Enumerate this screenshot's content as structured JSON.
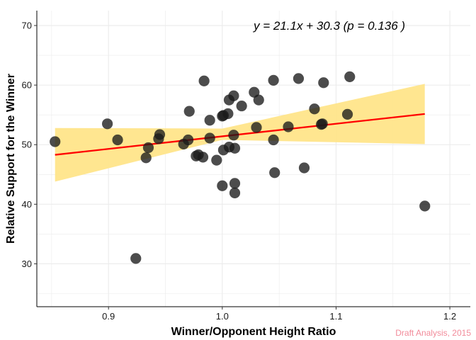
{
  "chart_data": {
    "type": "scatter",
    "xlabel": "Winner/Opponent Height Ratio",
    "ylabel": "Relative Support for the Winner",
    "xlim": [
      0.837,
      1.218
    ],
    "ylim": [
      22.8,
      72.5
    ],
    "x_ticks": [
      0.9,
      1.0,
      1.1,
      1.2
    ],
    "x_tick_labels": [
      "0.9",
      "1.0",
      "1.1",
      "1.2"
    ],
    "y_ticks": [
      30,
      40,
      50,
      60,
      70
    ],
    "y_tick_labels": [
      "30",
      "40",
      "50",
      "60",
      "70"
    ],
    "grid": true,
    "equation": "y = 21.1x + 30.3 (p = 0.136 )",
    "caption": "Draft Analysis, 2015",
    "colors": {
      "points": "#1a1a1a",
      "fit_line": "#ff0000",
      "confidence_band": "#ffe58a",
      "grid": "#ebebeb",
      "caption": "#f28b9a"
    },
    "fit": {
      "slope": 21.1,
      "intercept": 30.3,
      "x_range": [
        0.853,
        1.178
      ],
      "band_lower": [
        [
          0.853,
          43.8
        ],
        [
          1.0,
          50.8
        ],
        [
          1.178,
          50.1
        ]
      ],
      "band_upper": [
        [
          0.853,
          52.8
        ],
        [
          1.0,
          52.7
        ],
        [
          1.178,
          60.2
        ]
      ]
    },
    "points": [
      [
        0.853,
        50.5
      ],
      [
        0.899,
        53.5
      ],
      [
        0.908,
        50.8
      ],
      [
        0.924,
        30.9
      ],
      [
        0.933,
        47.8
      ],
      [
        0.935,
        49.5
      ],
      [
        0.944,
        51.0
      ],
      [
        0.945,
        51.7
      ],
      [
        0.966,
        50.1
      ],
      [
        0.97,
        50.8
      ],
      [
        0.971,
        55.6
      ],
      [
        0.977,
        48.1
      ],
      [
        0.979,
        48.3
      ],
      [
        0.983,
        47.9
      ],
      [
        0.984,
        60.7
      ],
      [
        0.989,
        54.1
      ],
      [
        0.989,
        51.1
      ],
      [
        0.995,
        47.4
      ],
      [
        1.0,
        54.8
      ],
      [
        1.001,
        54.9
      ],
      [
        1.0,
        43.1
      ],
      [
        1.001,
        49.1
      ],
      [
        1.005,
        55.2
      ],
      [
        1.006,
        57.5
      ],
      [
        1.006,
        49.6
      ],
      [
        1.01,
        58.2
      ],
      [
        1.01,
        51.6
      ],
      [
        1.011,
        49.4
      ],
      [
        1.011,
        43.5
      ],
      [
        1.011,
        41.9
      ],
      [
        1.017,
        56.5
      ],
      [
        1.028,
        58.8
      ],
      [
        1.032,
        57.5
      ],
      [
        1.03,
        52.9
      ],
      [
        1.045,
        60.8
      ],
      [
        1.045,
        50.8
      ],
      [
        1.046,
        45.3
      ],
      [
        1.058,
        53.0
      ],
      [
        1.067,
        61.1
      ],
      [
        1.072,
        46.1
      ],
      [
        1.081,
        56.0
      ],
      [
        1.087,
        53.4
      ],
      [
        1.088,
        53.5
      ],
      [
        1.089,
        60.4
      ],
      [
        1.11,
        55.1
      ],
      [
        1.112,
        61.4
      ],
      [
        1.178,
        39.7
      ]
    ]
  }
}
